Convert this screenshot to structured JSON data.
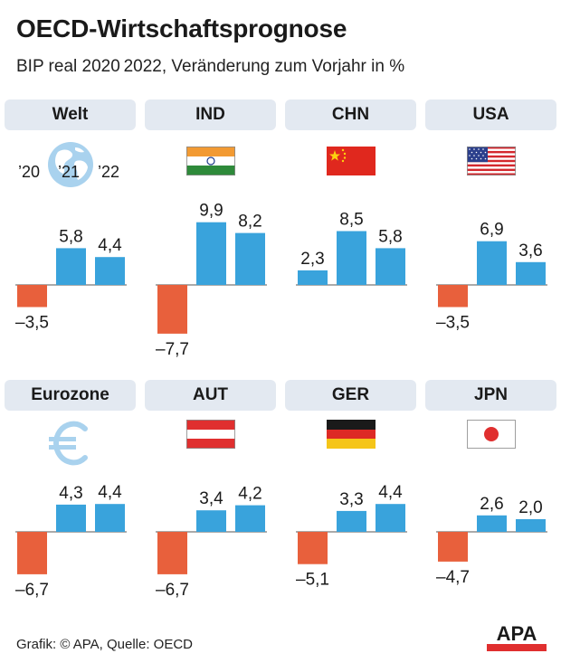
{
  "title": "OECD-Wirtschaftsprognose",
  "subtitle": "BIP real 2020 2022, Veränderung zum Vorjahr in %",
  "footer": "Grafik: © APA, Quelle: OECD",
  "logo_text": "APA",
  "year_labels": [
    "’20",
    "’21",
    "’22"
  ],
  "colors": {
    "negative": "#e8603c",
    "positive": "#39a3dc",
    "header_bg": "#e3e9f1"
  },
  "chart_data": [
    {
      "type": "bar",
      "label": "Welt",
      "icon": "globe-icon",
      "categories": [
        "2020",
        "2021",
        "2022"
      ],
      "values": [
        -3.5,
        5.8,
        4.4
      ],
      "value_labels": [
        "–3,5",
        "5,8",
        "4,4"
      ]
    },
    {
      "type": "bar",
      "label": "IND",
      "icon": "india-flag-icon",
      "categories": [
        "2020",
        "2021",
        "2022"
      ],
      "values": [
        -7.7,
        9.9,
        8.2
      ],
      "value_labels": [
        "–7,7",
        "9,9",
        "8,2"
      ]
    },
    {
      "type": "bar",
      "label": "CHN",
      "icon": "china-flag-icon",
      "categories": [
        "2020",
        "2021",
        "2022"
      ],
      "values": [
        2.3,
        8.5,
        5.8
      ],
      "value_labels": [
        "2,3",
        "8,5",
        "5,8"
      ]
    },
    {
      "type": "bar",
      "label": "USA",
      "icon": "usa-flag-icon",
      "categories": [
        "2020",
        "2021",
        "2022"
      ],
      "values": [
        -3.5,
        6.9,
        3.6
      ],
      "value_labels": [
        "–3,5",
        "6,9",
        "3,6"
      ]
    },
    {
      "type": "bar",
      "label": "Eurozone",
      "icon": "euro-icon",
      "categories": [
        "2020",
        "2021",
        "2022"
      ],
      "values": [
        -6.7,
        4.3,
        4.4
      ],
      "value_labels": [
        "–6,7",
        "4,3",
        "4,4"
      ]
    },
    {
      "type": "bar",
      "label": "AUT",
      "icon": "austria-flag-icon",
      "categories": [
        "2020",
        "2021",
        "2022"
      ],
      "values": [
        -6.7,
        3.4,
        4.2
      ],
      "value_labels": [
        "–6,7",
        "3,4",
        "4,2"
      ]
    },
    {
      "type": "bar",
      "label": "GER",
      "icon": "germany-flag-icon",
      "categories": [
        "2020",
        "2021",
        "2022"
      ],
      "values": [
        -5.1,
        3.3,
        4.4
      ],
      "value_labels": [
        "–5,1",
        "3,3",
        "4,4"
      ]
    },
    {
      "type": "bar",
      "label": "JPN",
      "icon": "japan-flag-icon",
      "categories": [
        "2020",
        "2021",
        "2022"
      ],
      "values": [
        -4.7,
        2.6,
        2.0
      ],
      "value_labels": [
        "–4,7",
        "2,6",
        "2,0"
      ]
    }
  ]
}
